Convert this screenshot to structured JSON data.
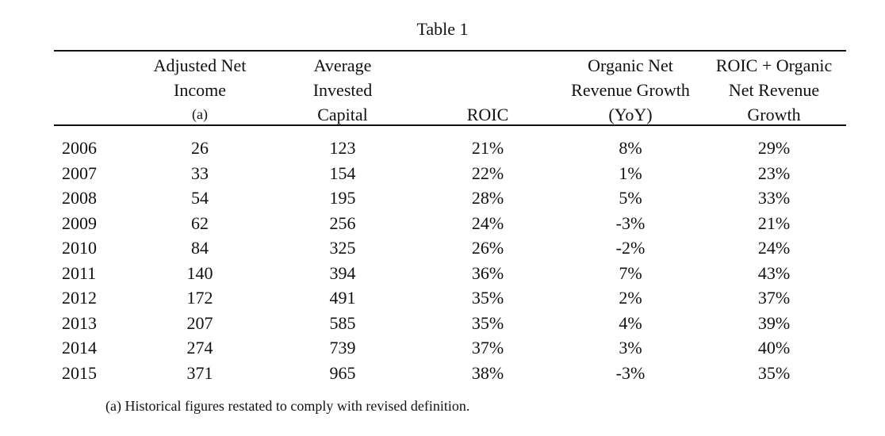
{
  "table": {
    "title": "Table 1",
    "headers": [
      {
        "lines": [
          "Adjusted Net",
          "Income",
          "(a)"
        ]
      },
      {
        "lines": [
          "Average",
          "Invested",
          "Capital"
        ]
      },
      {
        "lines": [
          "",
          "",
          "ROIC"
        ]
      },
      {
        "lines": [
          "Organic Net",
          "Revenue Growth",
          "(YoY)"
        ]
      },
      {
        "lines": [
          "ROIC + Organic",
          "Net Revenue",
          "Growth"
        ]
      }
    ],
    "rows": [
      {
        "year": "2006",
        "values": [
          "26",
          "123",
          "21%",
          "8%",
          "29%"
        ]
      },
      {
        "year": "2007",
        "values": [
          "33",
          "154",
          "22%",
          "1%",
          "23%"
        ]
      },
      {
        "year": "2008",
        "values": [
          "54",
          "195",
          "28%",
          "5%",
          "33%"
        ]
      },
      {
        "year": "2009",
        "values": [
          "62",
          "256",
          "24%",
          "-3%",
          "21%"
        ]
      },
      {
        "year": "2010",
        "values": [
          "84",
          "325",
          "26%",
          "-2%",
          "24%"
        ]
      },
      {
        "year": "2011",
        "values": [
          "140",
          "394",
          "36%",
          "7%",
          "43%"
        ]
      },
      {
        "year": "2012",
        "values": [
          "172",
          "491",
          "35%",
          "2%",
          "37%"
        ]
      },
      {
        "year": "2013",
        "values": [
          "207",
          "585",
          "35%",
          "4%",
          "39%"
        ]
      },
      {
        "year": "2014",
        "values": [
          "274",
          "739",
          "37%",
          "3%",
          "40%"
        ]
      },
      {
        "year": "2015",
        "values": [
          "371",
          "965",
          "38%",
          "-3%",
          "35%"
        ]
      }
    ],
    "footnote": "(a)  Historical figures restated to comply with revised definition."
  }
}
